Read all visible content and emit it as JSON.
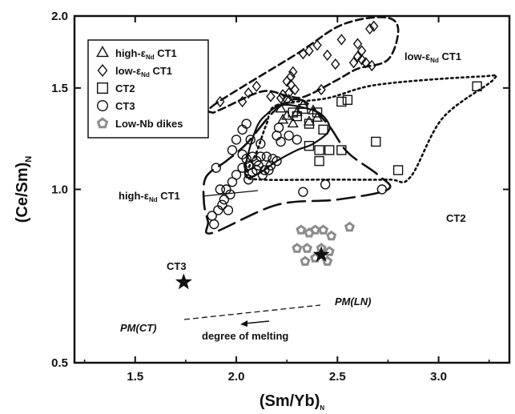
{
  "chart_data": {
    "type": "scatter",
    "title": "",
    "xlabel": "(Sm/Yb)",
    "xlabel_sub": "N",
    "ylabel": "(Ce/Sm)",
    "ylabel_sub": "N",
    "xlim": [
      1.2,
      3.35
    ],
    "ylim": [
      0.5,
      2.0
    ],
    "yscale": "log",
    "xticks": [
      1.5,
      2.0,
      2.5,
      3.0
    ],
    "xtick_labels": [
      "1.5",
      "2.0",
      "2.5",
      "3.0"
    ],
    "yticks": [
      0.5,
      1.0,
      1.5,
      2.0
    ],
    "ytick_labels": [
      "0.5",
      "1.0",
      "1.5",
      "2.0"
    ],
    "grid": false,
    "legend_position": "top-left",
    "legend": [
      {
        "marker": "triangle",
        "text_main": "high-ε",
        "text_sub": "Nd",
        "text_tail": " CT1"
      },
      {
        "marker": "diamond",
        "text_main": "low-ε",
        "text_sub": "Nd",
        "text_tail": " CT1"
      },
      {
        "marker": "square",
        "text_main": "CT2",
        "text_sub": "",
        "text_tail": ""
      },
      {
        "marker": "circle",
        "text_main": "CT3",
        "text_sub": "",
        "text_tail": ""
      },
      {
        "marker": "pentagon",
        "text_main": "Low-Nb dikes",
        "text_sub": "",
        "text_tail": ""
      }
    ],
    "colors": {
      "marker": "#111111",
      "low_nb": "#8c8c8c",
      "axis": "#111111"
    },
    "series": [
      {
        "name": "high-εNd CT1",
        "marker": "triangle",
        "points": [
          [
            2.22,
            1.38
          ],
          [
            2.26,
            1.43
          ],
          [
            2.25,
            1.34
          ],
          [
            2.3,
            1.36
          ],
          [
            2.33,
            1.4
          ],
          [
            2.36,
            1.31
          ],
          [
            2.4,
            1.33
          ],
          [
            2.38,
            1.37
          ],
          [
            2.28,
            1.3
          ],
          [
            2.23,
            1.32
          ]
        ]
      },
      {
        "name": "low-εNd CT1",
        "marker": "diamond",
        "points": [
          [
            2.68,
            1.92
          ],
          [
            2.66,
            1.9
          ],
          [
            2.52,
            1.82
          ],
          [
            2.4,
            1.78
          ],
          [
            2.6,
            1.79
          ],
          [
            2.62,
            1.74
          ],
          [
            2.33,
            1.72
          ],
          [
            2.36,
            1.74
          ],
          [
            2.45,
            1.71
          ],
          [
            2.6,
            1.7
          ],
          [
            2.62,
            1.68
          ],
          [
            2.58,
            1.66
          ],
          [
            2.64,
            1.66
          ],
          [
            2.49,
            1.65
          ],
          [
            2.67,
            1.64
          ],
          [
            2.28,
            1.6
          ],
          [
            2.27,
            1.57
          ],
          [
            2.25,
            1.54
          ],
          [
            2.1,
            1.51
          ],
          [
            2.06,
            1.47
          ],
          [
            2.27,
            1.52
          ],
          [
            2.29,
            1.49
          ],
          [
            2.23,
            1.46
          ],
          [
            2.26,
            1.47
          ],
          [
            2.17,
            1.45
          ],
          [
            2.42,
            1.49
          ],
          [
            2.03,
            1.42
          ],
          [
            1.92,
            1.42
          ],
          [
            2.25,
            1.43
          ],
          [
            2.22,
            1.44
          ]
        ]
      },
      {
        "name": "CT2",
        "marker": "square",
        "points": [
          [
            3.19,
            1.51
          ],
          [
            2.52,
            1.42
          ],
          [
            2.55,
            1.43
          ],
          [
            2.33,
            1.38
          ],
          [
            2.4,
            1.36
          ],
          [
            2.3,
            1.34
          ],
          [
            2.28,
            1.36
          ],
          [
            2.36,
            1.3
          ],
          [
            2.43,
            1.27
          ],
          [
            2.36,
            1.19
          ],
          [
            2.41,
            1.17
          ],
          [
            2.46,
            1.17
          ],
          [
            2.52,
            1.17
          ],
          [
            2.41,
            1.12
          ],
          [
            2.8,
            1.08
          ],
          [
            2.69,
            1.21
          ]
        ]
      },
      {
        "name": "CT3",
        "marker": "circle",
        "points": [
          [
            1.9,
            1.09
          ],
          [
            1.92,
            1.0
          ],
          [
            1.94,
            0.96
          ],
          [
            1.95,
            1.0
          ],
          [
            1.97,
            0.98
          ],
          [
            1.98,
            1.03
          ],
          [
            1.93,
            0.94
          ],
          [
            1.88,
            0.9
          ],
          [
            1.89,
            0.87
          ],
          [
            1.91,
            0.92
          ],
          [
            1.96,
            0.92
          ],
          [
            1.98,
            1.17
          ],
          [
            2.0,
            1.22
          ],
          [
            2.03,
            1.15
          ],
          [
            2.05,
            1.13
          ],
          [
            2.08,
            1.14
          ],
          [
            2.1,
            1.12
          ],
          [
            2.12,
            1.14
          ],
          [
            2.15,
            1.14
          ],
          [
            2.18,
            1.13
          ],
          [
            2.2,
            1.12
          ],
          [
            2.11,
            1.1
          ],
          [
            2.14,
            1.08
          ],
          [
            2.17,
            1.1
          ],
          [
            2.03,
            1.09
          ],
          [
            2.06,
            1.1
          ],
          [
            2.08,
            1.07
          ],
          [
            2.1,
            1.08
          ],
          [
            2.13,
            1.06
          ],
          [
            2.16,
            1.08
          ],
          [
            2.06,
            1.04
          ],
          [
            2.22,
            1.21
          ],
          [
            2.26,
            1.24
          ],
          [
            2.21,
            1.28
          ],
          [
            2.3,
            1.22
          ],
          [
            2.2,
            1.24
          ],
          [
            2.07,
            1.22
          ],
          [
            2.12,
            1.2
          ],
          [
            2.33,
            0.99
          ],
          [
            2.44,
            1.02
          ],
          [
            2.72,
            1.0
          ],
          [
            2.03,
            1.27
          ],
          [
            2.05,
            1.3
          ],
          [
            2.0,
            1.06
          ]
        ]
      },
      {
        "name": "Low-Nb dikes",
        "marker": "pentagon",
        "points": [
          [
            2.32,
            0.85
          ],
          [
            2.36,
            0.84
          ],
          [
            2.39,
            0.85
          ],
          [
            2.43,
            0.85
          ],
          [
            2.47,
            0.83
          ],
          [
            2.56,
            0.86
          ],
          [
            2.35,
            0.79
          ],
          [
            2.42,
            0.79
          ],
          [
            2.3,
            0.79
          ],
          [
            2.46,
            0.78
          ],
          [
            2.39,
            0.76
          ],
          [
            2.45,
            0.75
          ],
          [
            2.34,
            0.75
          ]
        ]
      }
    ],
    "fields": [
      {
        "name": "low-εNd CT1",
        "style": "dashed",
        "polygon": [
          [
            1.9,
            1.41
          ],
          [
            1.88,
            1.36
          ],
          [
            1.93,
            1.38
          ],
          [
            2.13,
            1.48
          ],
          [
            2.26,
            1.45
          ],
          [
            2.34,
            1.45
          ],
          [
            2.5,
            1.55
          ],
          [
            2.6,
            1.62
          ],
          [
            2.75,
            1.68
          ],
          [
            2.8,
            1.9
          ],
          [
            2.73,
            1.99
          ],
          [
            2.52,
            1.93
          ],
          [
            2.3,
            1.72
          ]
        ]
      },
      {
        "name": "CT2",
        "style": "dotted",
        "polygon": [
          [
            2.2,
            1.4
          ],
          [
            2.45,
            1.44
          ],
          [
            2.7,
            1.52
          ],
          [
            3.2,
            1.57
          ],
          [
            3.27,
            1.55
          ],
          [
            3.02,
            1.33
          ],
          [
            2.86,
            1.05
          ],
          [
            2.75,
            1.04
          ],
          [
            2.45,
            1.04
          ],
          [
            2.12,
            1.04
          ],
          [
            2.05,
            1.06
          ],
          [
            2.1,
            1.16
          ],
          [
            2.15,
            1.3
          ]
        ]
      },
      {
        "name": "high-εNd CT1",
        "style": "solid",
        "polygon": [
          [
            2.1,
            1.28
          ],
          [
            2.15,
            1.35
          ],
          [
            2.22,
            1.4
          ],
          [
            2.32,
            1.39
          ],
          [
            2.42,
            1.35
          ],
          [
            2.46,
            1.27
          ],
          [
            2.38,
            1.2
          ],
          [
            2.3,
            1.17
          ],
          [
            2.2,
            1.12
          ],
          [
            2.12,
            1.07
          ],
          [
            2.05,
            1.05
          ],
          [
            2.05,
            1.12
          ]
        ]
      },
      {
        "name": "CT3",
        "style": "longdash",
        "polygon": [
          [
            1.86,
            0.88
          ],
          [
            1.88,
            0.84
          ],
          [
            2.2,
            0.94
          ],
          [
            2.5,
            0.96
          ],
          [
            2.75,
            1.0
          ],
          [
            2.7,
            1.06
          ],
          [
            2.55,
            1.16
          ],
          [
            2.45,
            1.3
          ],
          [
            2.32,
            1.43
          ],
          [
            2.2,
            1.38
          ],
          [
            2.05,
            1.2
          ],
          [
            1.95,
            1.12
          ],
          [
            1.85,
            1.05
          ],
          [
            1.84,
            0.95
          ]
        ]
      }
    ],
    "reference_points": [
      {
        "label": "PM(CT)",
        "x": 1.74,
        "y": 0.69
      },
      {
        "label": "PM(LN)",
        "x": 2.42,
        "y": 0.77
      }
    ],
    "annotations": {
      "low_ct1_label_main": "low-ε",
      "low_ct1_label_sub": "Nd",
      "low_ct1_label_tail": " CT1",
      "high_ct1_label_main": "high-ε",
      "high_ct1_label_sub": "Nd",
      "high_ct1_label_tail": " CT1",
      "ct2_label": "CT2",
      "ct3_label": "CT3",
      "pm_ct_label": "PM(CT)",
      "pm_ln_label": "PM(LN)",
      "melting_label": "degree of melting"
    }
  }
}
